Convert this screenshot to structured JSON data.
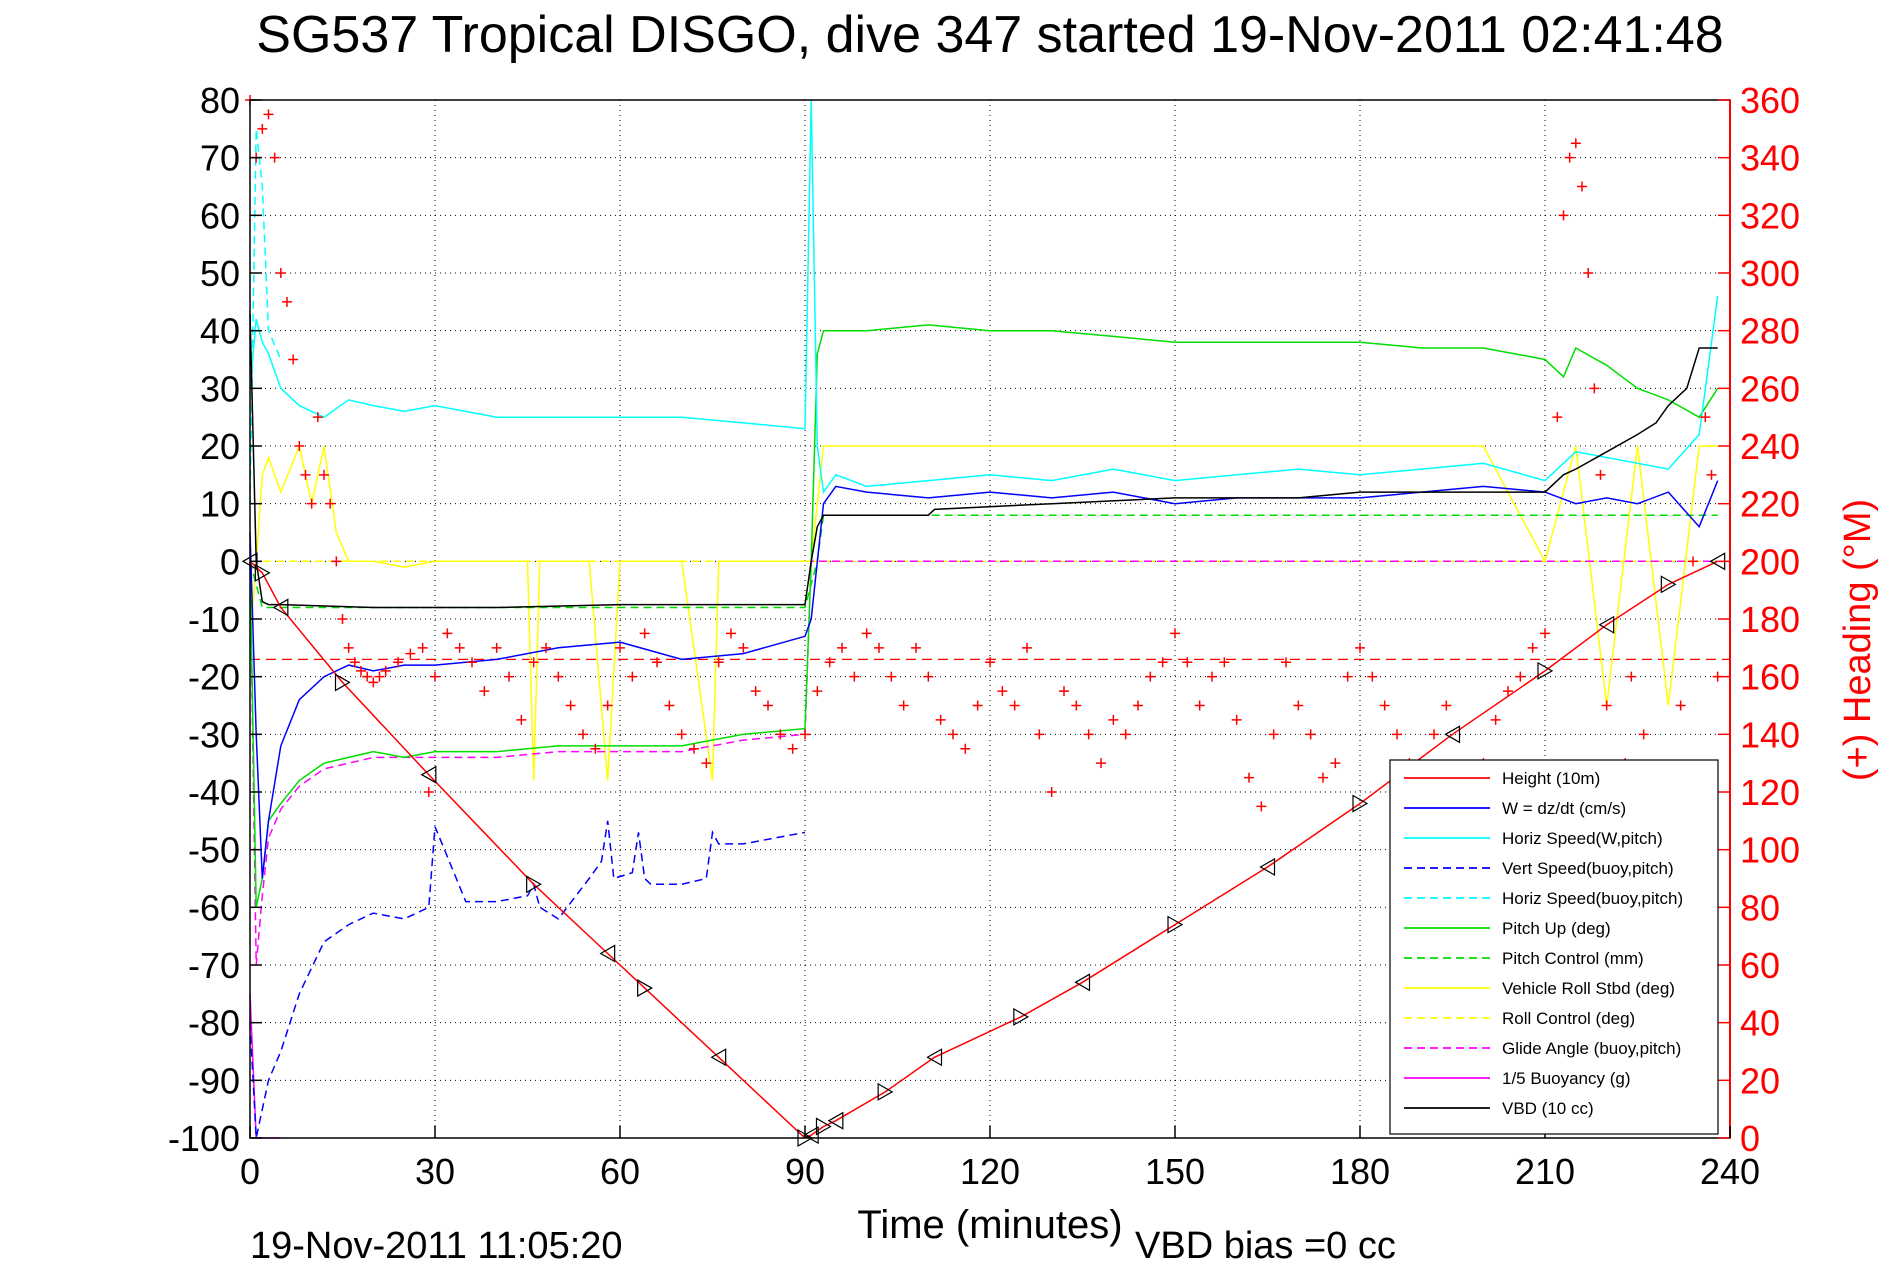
{
  "chart_data": {
    "type": "line",
    "title": "SG537 Tropical DISGO, dive 347 started 19-Nov-2011 02:41:48",
    "xlabel": "Time (minutes)",
    "ylabel_right": "(+) Heading (°M)",
    "footer_left": "19-Nov-2011 11:05:20",
    "footer_right": "VBD bias =0 cc",
    "xlim": [
      0,
      240
    ],
    "ylim": [
      -100,
      80
    ],
    "ylim_right": [
      0,
      360
    ],
    "x_ticks": [
      0,
      30,
      60,
      90,
      120,
      150,
      180,
      210,
      240
    ],
    "x_tick_labels": [
      "0",
      "30",
      "60",
      "90",
      "120",
      "150",
      "180",
      "210",
      "240"
    ],
    "y_ticks": [
      80,
      70,
      60,
      50,
      40,
      30,
      20,
      10,
      0,
      -10,
      -20,
      -30,
      -40,
      -50,
      -60,
      -70,
      -80,
      -90,
      -100
    ],
    "y_tick_labels": [
      "80",
      "70",
      "60",
      "50",
      "40",
      "30",
      "20",
      "10",
      "0",
      "-10",
      "-20",
      "-30",
      "-40",
      "-50",
      "-60",
      "-70",
      "-80",
      "-90",
      "-100"
    ],
    "y_ticks_right": [
      360,
      340,
      320,
      300,
      280,
      260,
      240,
      220,
      200,
      180,
      160,
      140,
      120,
      100,
      80,
      60,
      40,
      20,
      0
    ],
    "y_tick_labels_right": [
      "360",
      "340",
      "320",
      "300",
      "280",
      "260",
      "240",
      "220",
      "200",
      "180",
      "160",
      "140",
      "120",
      "100",
      "80",
      "60",
      "40",
      "20",
      "0"
    ],
    "grid": true,
    "legend_position": "bottom-right",
    "colors": {
      "height": "#ff0000",
      "w": "#0000ff",
      "horiz_speed_w": "#00ffff",
      "vert_speed_buoy": "#0000ff",
      "horiz_speed_buoy": "#00ffff",
      "pitch_up": "#00dd00",
      "pitch_control": "#00dd00",
      "roll": "#ffff00",
      "roll_control": "#ffff00",
      "glide_angle": "#ff00ff",
      "buoyancy": "#ff00ff",
      "vbd": "#000000",
      "heading": "#ff0000"
    },
    "legend": [
      {
        "key": "height",
        "label": "Height (10m)",
        "dash": false
      },
      {
        "key": "w",
        "label": "W = dz/dt (cm/s)",
        "dash": false
      },
      {
        "key": "horiz_speed_w",
        "label": "Horiz Speed(W,pitch)",
        "dash": false
      },
      {
        "key": "vert_speed_buoy",
        "label": "Vert Speed(buoy,pitch)",
        "dash": true
      },
      {
        "key": "horiz_speed_buoy",
        "label": "Horiz Speed(buoy,pitch)",
        "dash": true
      },
      {
        "key": "pitch_up",
        "label": "Pitch Up (deg)",
        "dash": false
      },
      {
        "key": "pitch_control",
        "label": "Pitch Control (mm)",
        "dash": true
      },
      {
        "key": "roll",
        "label": "Vehicle Roll Stbd (deg)",
        "dash": false
      },
      {
        "key": "roll_control",
        "label": "Roll Control (deg)",
        "dash": true
      },
      {
        "key": "glide_angle",
        "label": "Glide Angle (buoy,pitch)",
        "dash": true
      },
      {
        "key": "buoyancy",
        "label": "1/5 Buoyancy (g)",
        "dash": false
      },
      {
        "key": "vbd",
        "label": "VBD (10 cc)",
        "dash": false
      }
    ],
    "series": [
      {
        "key": "height",
        "x": [
          0,
          2,
          5,
          15,
          29,
          46,
          58,
          64,
          76,
          90,
          91,
          93,
          95,
          103,
          111,
          125,
          135,
          150,
          165,
          180,
          195,
          210,
          220,
          230,
          238
        ],
        "y": [
          0,
          -2,
          -8,
          -21,
          -37,
          -56,
          -68,
          -74,
          -86,
          -100,
          -99.5,
          -98,
          -97,
          -92,
          -86,
          -79,
          -73,
          -63,
          -53,
          -42,
          -30,
          -19,
          -11,
          -4,
          0
        ]
      },
      {
        "key": "w",
        "x": [
          0,
          1,
          2,
          3,
          5,
          8,
          12,
          16,
          20,
          25,
          30,
          40,
          50,
          60,
          70,
          80,
          90,
          91,
          93,
          95,
          100,
          110,
          120,
          130,
          140,
          150,
          160,
          170,
          180,
          190,
          200,
          210,
          215,
          220,
          225,
          230,
          235,
          238
        ],
        "y": [
          5,
          -30,
          -55,
          -45,
          -32,
          -24,
          -20,
          -18,
          -19,
          -18,
          -18,
          -17,
          -15,
          -14,
          -17,
          -16,
          -13,
          -10,
          10,
          13,
          12,
          11,
          12,
          11,
          12,
          10,
          11,
          11,
          11,
          12,
          13,
          12,
          10,
          11,
          10,
          12,
          6,
          14
        ]
      },
      {
        "key": "horiz_speed_w",
        "x": [
          0,
          1,
          2,
          3,
          5,
          8,
          12,
          16,
          20,
          25,
          30,
          40,
          50,
          60,
          70,
          80,
          90,
          91,
          92,
          93,
          95,
          100,
          110,
          120,
          130,
          140,
          150,
          160,
          170,
          180,
          190,
          200,
          210,
          215,
          220,
          225,
          230,
          235,
          238
        ],
        "y": [
          30,
          42,
          38,
          36,
          30,
          27,
          25,
          28,
          27,
          26,
          27,
          25,
          25,
          25,
          25,
          24,
          23,
          80,
          20,
          12,
          15,
          13,
          14,
          15,
          14,
          16,
          14,
          15,
          16,
          15,
          16,
          17,
          14,
          19,
          18,
          17,
          16,
          22,
          46
        ]
      },
      {
        "key": "vert_speed_buoy",
        "x": [
          0,
          1,
          2,
          3,
          5,
          8,
          12,
          16,
          20,
          25,
          29,
          30,
          35,
          40,
          45,
          46,
          47,
          50,
          55,
          57,
          58,
          59,
          62,
          63,
          64,
          65,
          70,
          74,
          75,
          76,
          80,
          85,
          90
        ],
        "y": [
          -80,
          -100,
          -95,
          -90,
          -85,
          -75,
          -66,
          -63,
          -61,
          -62,
          -60,
          -46,
          -59,
          -59,
          -58,
          -56,
          -60,
          -62,
          -55,
          -52,
          -45,
          -55,
          -54,
          -47,
          -55,
          -56,
          -56,
          -55,
          -47,
          -49,
          -49,
          -48,
          -47
        ]
      },
      {
        "key": "horiz_speed_buoy",
        "x": [
          0,
          1,
          2,
          3,
          5
        ],
        "y": [
          10,
          75,
          65,
          40,
          35
        ]
      },
      {
        "key": "pitch_up",
        "x": [
          0,
          1,
          2,
          3,
          5,
          8,
          12,
          16,
          20,
          25,
          30,
          40,
          50,
          60,
          70,
          80,
          90,
          91,
          92,
          93,
          95,
          100,
          110,
          120,
          130,
          140,
          150,
          160,
          170,
          180,
          190,
          200,
          205,
          210,
          213,
          215,
          220,
          225,
          230,
          235,
          238
        ],
        "y": [
          0,
          -60,
          -55,
          -45,
          -42,
          -38,
          -35,
          -34,
          -33,
          -34,
          -33,
          -33,
          -32,
          -32,
          -32,
          -30,
          -29,
          0,
          36,
          40,
          40,
          40,
          41,
          40,
          40,
          39,
          38,
          38,
          38,
          38,
          37,
          37,
          36,
          35,
          32,
          37,
          34,
          30,
          28,
          25,
          30
        ]
      },
      {
        "key": "pitch_control",
        "x": [
          0,
          2,
          5,
          90,
          92,
          93,
          95,
          238
        ],
        "y": [
          0,
          -8,
          -8,
          -8,
          0,
          8,
          8,
          8
        ]
      },
      {
        "key": "roll",
        "x": [
          0,
          1,
          2,
          3,
          5,
          8,
          10,
          12,
          14,
          16,
          20,
          25,
          30,
          35,
          40,
          45,
          46,
          47,
          50,
          55,
          58,
          60,
          65,
          70,
          75,
          76,
          78,
          80,
          85,
          90,
          91,
          93,
          100,
          110,
          120,
          130,
          140,
          150,
          160,
          170,
          180,
          190,
          200,
          210,
          215,
          220,
          225,
          230,
          235,
          238
        ],
        "y": [
          -15,
          0,
          15,
          18,
          12,
          20,
          10,
          20,
          5,
          0,
          0,
          -1,
          0,
          0,
          0,
          0,
          -38,
          0,
          0,
          0,
          -38,
          0,
          0,
          0,
          -38,
          0,
          0,
          0,
          0,
          0,
          0,
          20,
          20,
          20,
          20,
          20,
          20,
          20,
          20,
          20,
          20,
          20,
          20,
          0,
          20,
          -25,
          20,
          -25,
          20,
          20
        ]
      },
      {
        "key": "roll_control",
        "x": [
          0,
          2,
          5,
          90,
          92,
          93,
          238
        ],
        "y": [
          0,
          0,
          0,
          0,
          0,
          0,
          0
        ]
      },
      {
        "key": "glide_angle",
        "x": [
          0,
          1,
          2,
          3,
          5,
          8,
          12,
          16,
          20,
          25,
          30,
          40,
          50,
          60,
          70,
          80,
          90,
          91,
          93,
          238
        ],
        "y": [
          0,
          -70,
          -58,
          -48,
          -43,
          -39,
          -36,
          -35,
          -34,
          -34,
          -34,
          -34,
          -33,
          -33,
          -33,
          -31,
          -30,
          0,
          0,
          0
        ]
      },
      {
        "key": "buoyancy",
        "x": [
          0,
          1,
          3,
          5
        ],
        "y": [
          -75,
          -100,
          -100,
          -100
        ]
      },
      {
        "key": "vbd",
        "x": [
          0,
          1,
          2,
          3,
          5,
          20,
          40,
          60,
          80,
          90,
          91,
          92,
          93,
          95,
          110,
          111,
          130,
          150,
          170,
          180,
          190,
          200,
          210,
          213,
          215,
          220,
          225,
          228,
          230,
          233,
          235,
          238
        ],
        "y": [
          43,
          0,
          -7,
          -7.5,
          -7.5,
          -8,
          -8,
          -7.5,
          -7.5,
          -7.5,
          0,
          6,
          8,
          8,
          8,
          9,
          10,
          11,
          11,
          12,
          12,
          12,
          12,
          15,
          16,
          19,
          22,
          24,
          27,
          30,
          37,
          37
        ]
      }
    ],
    "heading": {
      "x": [
        0,
        1,
        2,
        3,
        4,
        5,
        6,
        7,
        8,
        9,
        10,
        11,
        12,
        13,
        14,
        15,
        16,
        17,
        18,
        19,
        20,
        21,
        22,
        24,
        26,
        28,
        29,
        30,
        32,
        34,
        36,
        38,
        40,
        42,
        44,
        46,
        48,
        50,
        52,
        54,
        56,
        58,
        60,
        62,
        64,
        66,
        68,
        70,
        72,
        74,
        76,
        78,
        80,
        82,
        84,
        86,
        88,
        90,
        92,
        94,
        96,
        98,
        100,
        102,
        104,
        106,
        108,
        110,
        112,
        114,
        116,
        118,
        120,
        122,
        124,
        126,
        128,
        130,
        132,
        134,
        136,
        138,
        140,
        142,
        144,
        146,
        148,
        150,
        152,
        154,
        156,
        158,
        160,
        162,
        164,
        166,
        168,
        170,
        172,
        174,
        176,
        178,
        180,
        182,
        184,
        186,
        188,
        190,
        192,
        194,
        196,
        198,
        200,
        202,
        204,
        206,
        208,
        210,
        212,
        213,
        214,
        215,
        216,
        217,
        218,
        219,
        220,
        221,
        222,
        223,
        224,
        226,
        228,
        230,
        232,
        234,
        236,
        237,
        238
      ],
      "y": [
        360,
        340,
        350,
        355,
        340,
        300,
        290,
        270,
        240,
        230,
        220,
        250,
        230,
        220,
        200,
        180,
        170,
        165,
        162,
        160,
        158,
        160,
        162,
        165,
        168,
        170,
        120,
        160,
        175,
        170,
        165,
        155,
        170,
        160,
        145,
        165,
        170,
        160,
        150,
        140,
        135,
        150,
        170,
        160,
        175,
        165,
        150,
        140,
        135,
        130,
        165,
        175,
        170,
        155,
        150,
        140,
        135,
        140,
        155,
        165,
        170,
        160,
        175,
        170,
        160,
        150,
        170,
        160,
        145,
        140,
        135,
        150,
        165,
        155,
        150,
        170,
        140,
        120,
        155,
        150,
        140,
        130,
        145,
        140,
        150,
        160,
        165,
        175,
        165,
        150,
        160,
        165,
        145,
        125,
        115,
        140,
        165,
        150,
        140,
        125,
        130,
        160,
        170,
        160,
        150,
        140,
        130,
        125,
        140,
        150,
        120,
        115,
        130,
        145,
        155,
        160,
        170,
        175,
        250,
        320,
        340,
        345,
        330,
        300,
        260,
        230,
        150,
        80,
        40,
        130,
        160,
        140,
        120,
        100,
        150,
        200,
        250,
        230,
        160
      ]
    },
    "constant_marker": {
      "y": -17,
      "style": "dashed red"
    }
  }
}
